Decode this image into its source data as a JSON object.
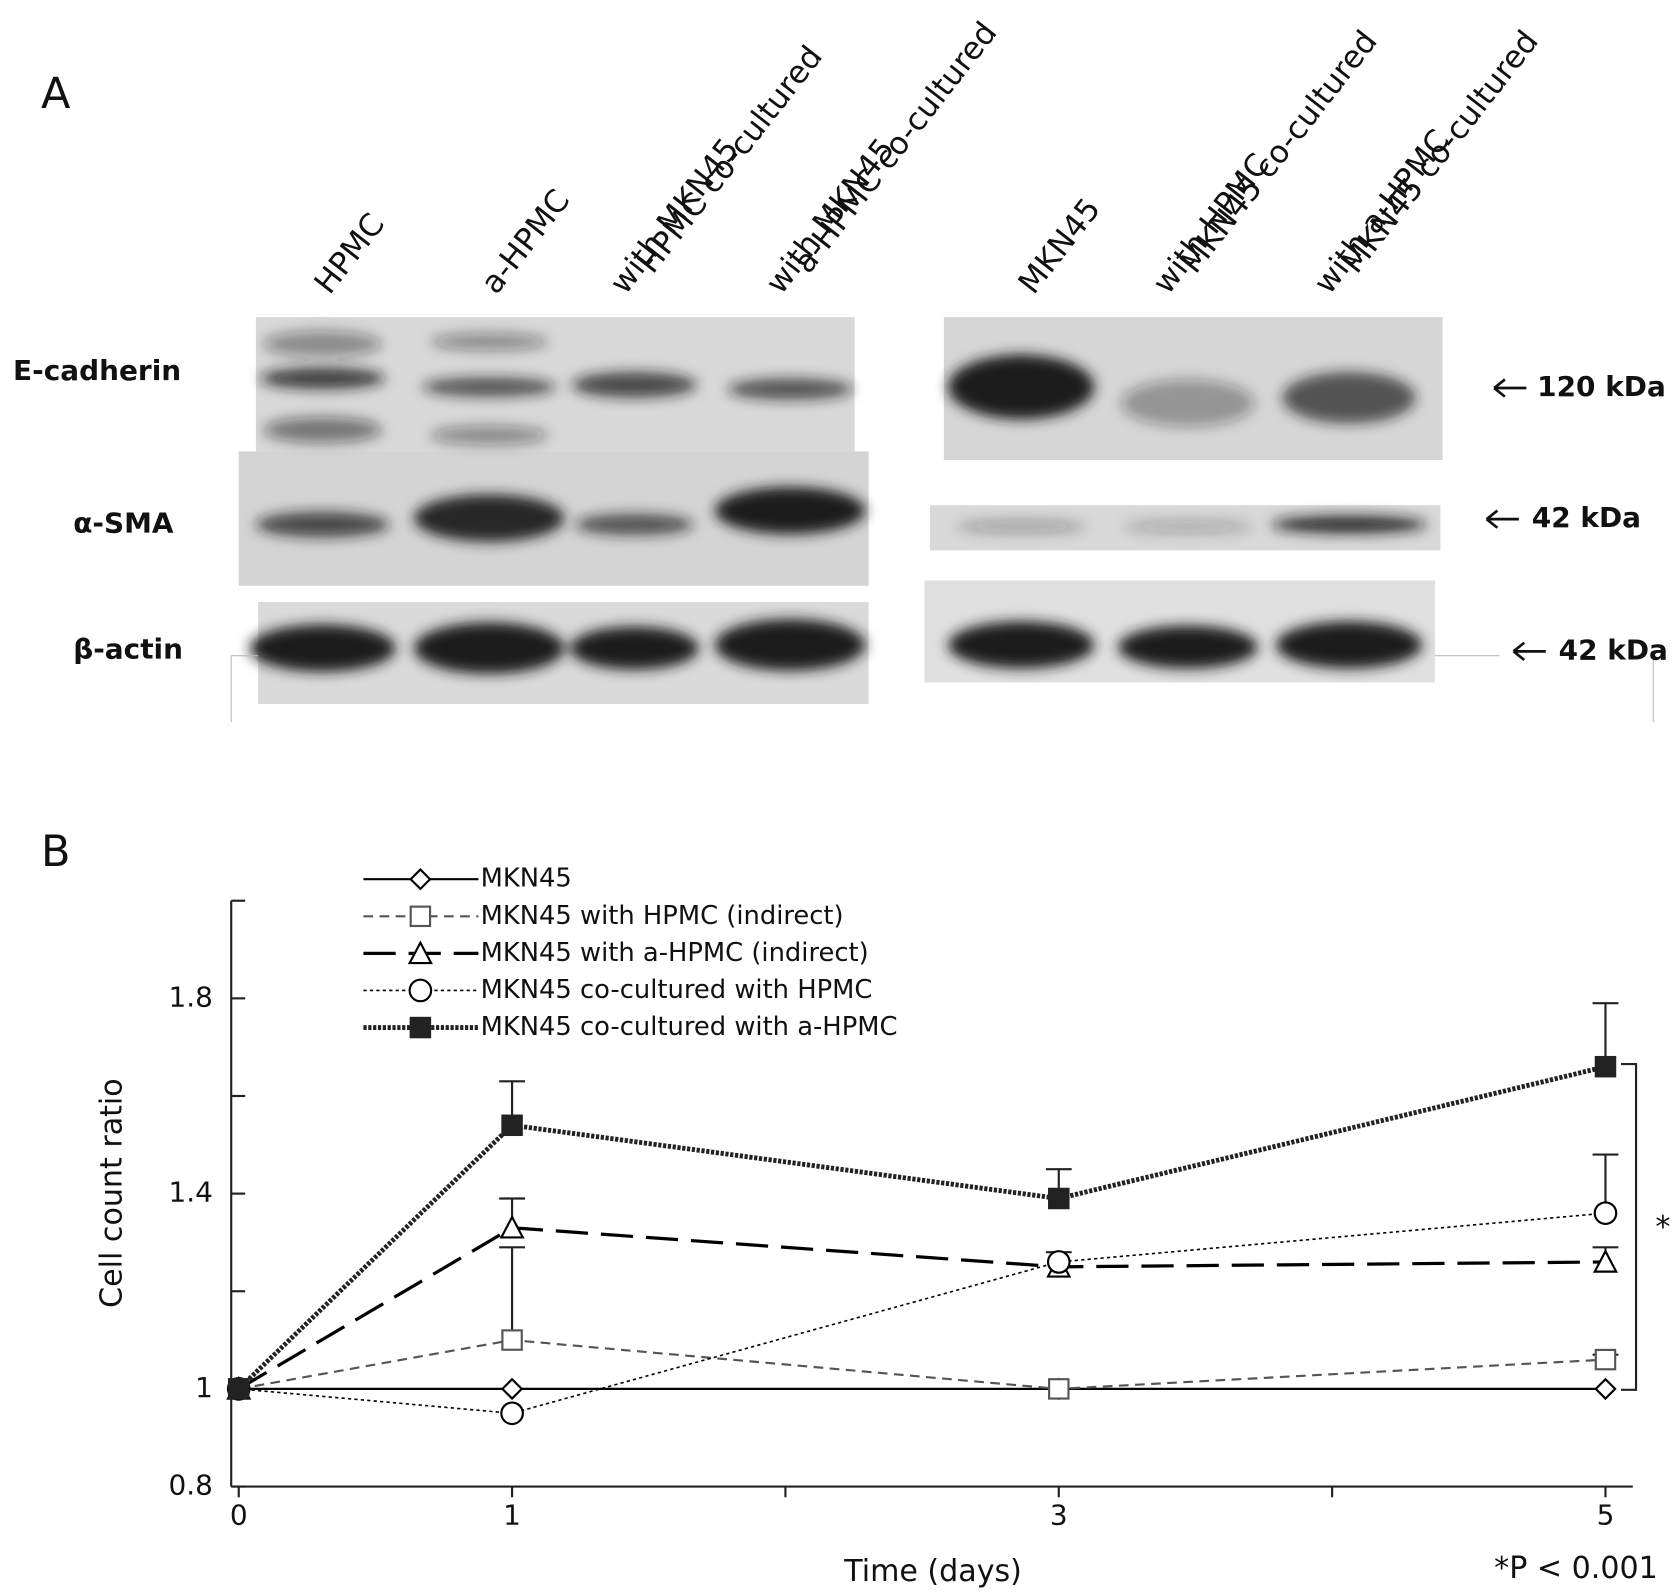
{
  "panel_a": {
    "label": "A",
    "lanes": [
      [
        "HPMC"
      ],
      [
        "a-HPMC"
      ],
      [
        "HPMC co-cultured",
        "with MKN45"
      ],
      [
        "a-HPMC co-cultured",
        "with MKN45"
      ],
      [
        "MKN45"
      ],
      [
        "MKN45 co-cultured",
        "with HPMC"
      ],
      [
        "MKN45 co-cultured",
        "with a-HPMC"
      ]
    ],
    "rows": [
      "E-cadherin",
      "α-SMA",
      "β-actin"
    ],
    "sizes": [
      "120 kDa",
      "42 kDa",
      "42 kDa"
    ]
  },
  "chart_data": {
    "type": "line",
    "panel_label": "B",
    "xlabel": "Time (days)",
    "ylabel": "Cell count ratio",
    "annotation": "*P < 0.001",
    "significance": "*",
    "x": [
      0,
      1,
      3,
      5
    ],
    "xlim": [
      0,
      5.1
    ],
    "xticks": [
      0,
      1,
      3,
      5
    ],
    "xminor_ticks": [
      2,
      4
    ],
    "ylim": [
      0.8,
      2.0
    ],
    "yticks": [
      0.8,
      1,
      1.4,
      1.8
    ],
    "yminor_ticks": [
      1.2,
      1.6,
      2.0
    ],
    "series": [
      {
        "name": "MKN45",
        "color": "#000000",
        "dash": "solid",
        "marker": "diamond",
        "marker_fill": "#ffffff",
        "values": [
          1,
          1,
          1,
          1
        ],
        "errors": [
          null,
          null,
          null,
          null
        ]
      },
      {
        "name": "MKN45 with HPMC (indirect)",
        "color": "#555555",
        "dash": "dashed",
        "marker": "square",
        "marker_fill": "#ffffff",
        "values": [
          1,
          1.1,
          1,
          1.06
        ],
        "errors": [
          null,
          0.19,
          null,
          0.01
        ]
      },
      {
        "name": "MKN45 with a-HPMC (indirect)",
        "color": "#000000",
        "dash": "long-dashed",
        "marker": "triangle",
        "marker_fill": "#ffffff",
        "values": [
          1,
          1.33,
          1.25,
          1.26
        ],
        "errors": [
          null,
          0.06,
          null,
          0.03
        ]
      },
      {
        "name": "MKN45 co-cultured with HPMC",
        "color": "#000000",
        "dash": "dotted",
        "marker": "circle",
        "marker_fill": "#ffffff",
        "values": [
          1,
          0.95,
          1.26,
          1.36
        ],
        "errors": [
          null,
          null,
          0.02,
          0.12
        ]
      },
      {
        "name": "MKN45 co-cultured with a-HPMC",
        "color": "#222222",
        "dash": "double-dotted",
        "marker": "square",
        "marker_fill": "#222222",
        "values": [
          1,
          1.54,
          1.39,
          1.66
        ],
        "errors": [
          null,
          0.09,
          0.06,
          0.13
        ]
      }
    ]
  }
}
